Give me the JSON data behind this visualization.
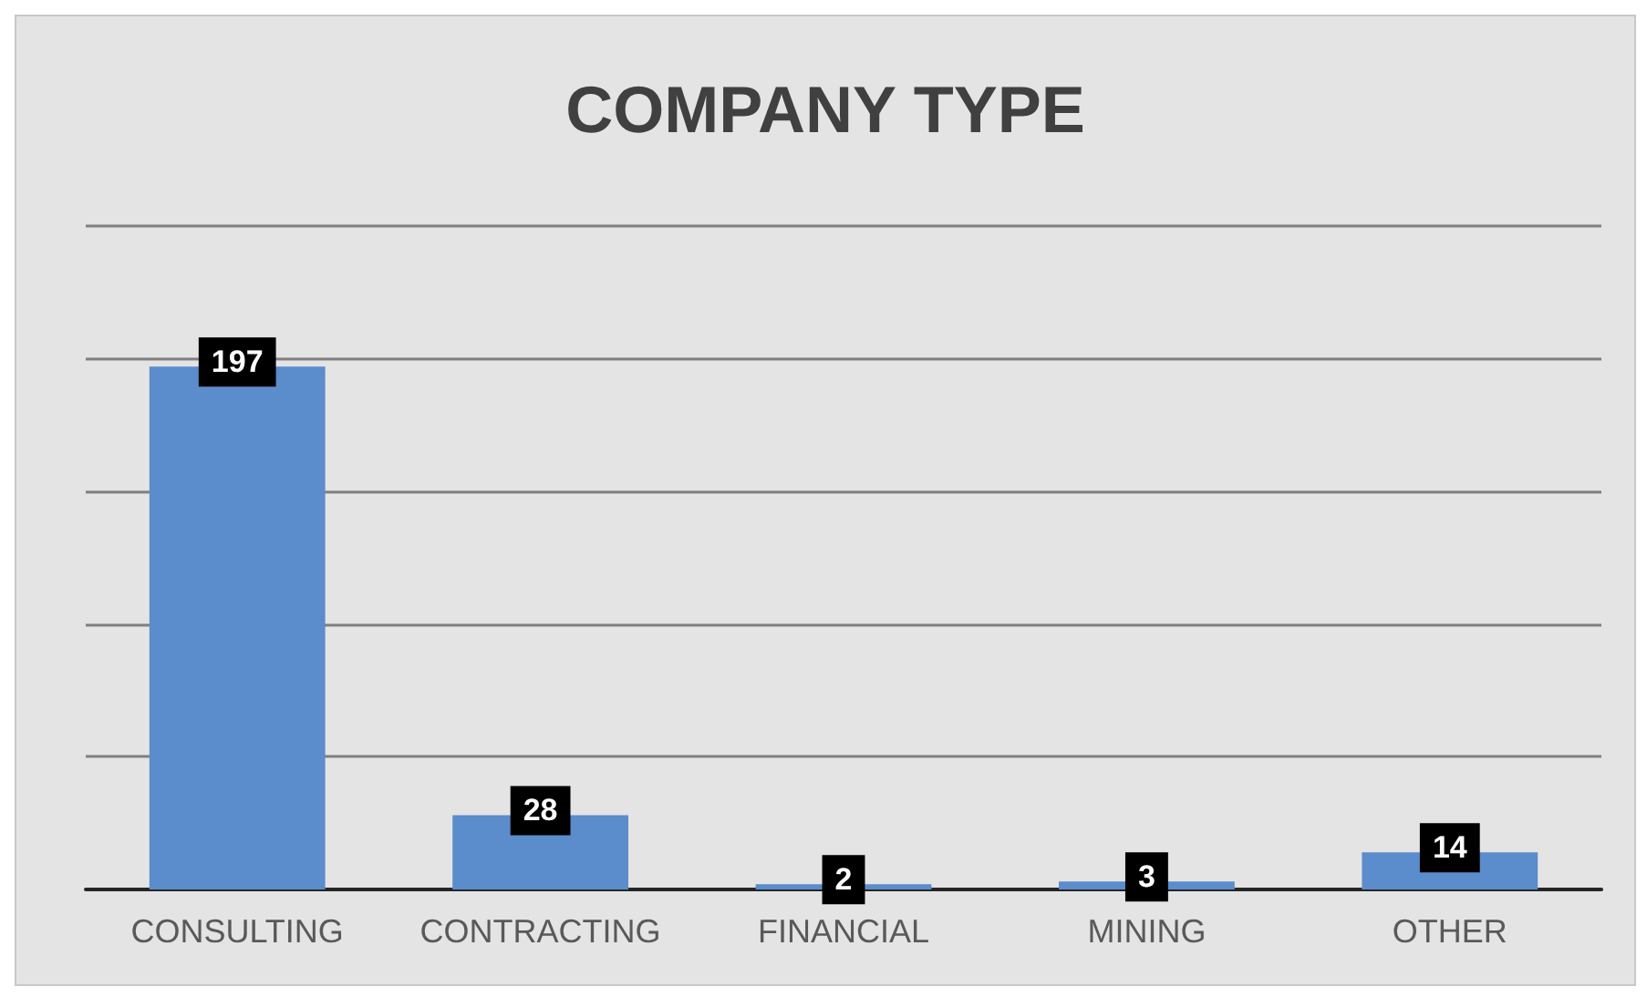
{
  "chart_data": {
    "type": "bar",
    "title": "COMPANY TYPE",
    "categories": [
      "CONSULTING",
      "CONTRACTING",
      "FINANCIAL",
      "MINING",
      "OTHER"
    ],
    "values": [
      197,
      28,
      2,
      3,
      14
    ],
    "color": "#5b8ccb",
    "ylim": [
      0,
      250
    ],
    "yticks": [
      {
        "value": 0,
        "label": null
      },
      {
        "value": 50,
        "label": null
      },
      {
        "value": 100,
        "label": null
      },
      {
        "value": 150,
        "label": null
      },
      {
        "value": 200,
        "label": null
      },
      {
        "value": 250,
        "label": null
      }
    ],
    "grid": "y",
    "tick_labels": "x",
    "data_labels": true
  }
}
